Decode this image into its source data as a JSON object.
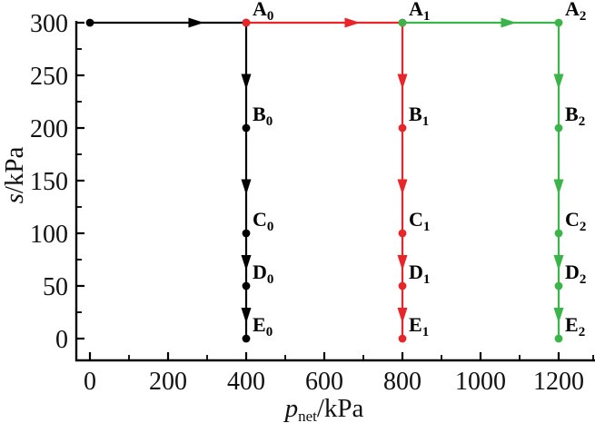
{
  "figure": {
    "description": "Stress path diagram with three loading stages",
    "background": "#ffffff"
  },
  "chart_data": {
    "type": "line",
    "title": "",
    "xlabel": {
      "symbol": "p",
      "subscript": "net",
      "rest": "/kPa"
    },
    "ylabel": {
      "symbol": "s",
      "subscript": "",
      "rest": "/kPa"
    },
    "x_axis": {
      "major_ticks": [
        0,
        200,
        400,
        600,
        800,
        1000,
        1200
      ],
      "minor_ticks": [
        100,
        300,
        500,
        700,
        900,
        1100,
        1300
      ],
      "range": [
        -35,
        1292
      ]
    },
    "y_axis": {
      "major_ticks": [
        0,
        50,
        100,
        150,
        200,
        250,
        300
      ],
      "minor_ticks": [
        25,
        75,
        125,
        175,
        225,
        275
      ],
      "range": [
        -21,
        302
      ]
    },
    "grid": false,
    "legend": "none",
    "colors": {
      "stage0": "#000000",
      "stage1": "#e8262a",
      "stage2": "#3bb54a"
    },
    "series": [
      {
        "name": "loading-stage-0",
        "color": "#000000",
        "points": [
          {
            "x": 0,
            "y": 300
          },
          {
            "x": 400,
            "y": 300,
            "label": "A",
            "sub": "0"
          },
          {
            "x": 400,
            "y": 200,
            "label": "B",
            "sub": "0"
          },
          {
            "x": 400,
            "y": 100,
            "label": "C",
            "sub": "0"
          },
          {
            "x": 400,
            "y": 50,
            "label": "D",
            "sub": "0"
          },
          {
            "x": 400,
            "y": 0,
            "label": "E",
            "sub": "0"
          }
        ]
      },
      {
        "name": "loading-stage-1",
        "color": "#e8262a",
        "points": [
          {
            "x": 400,
            "y": 300
          },
          {
            "x": 800,
            "y": 300,
            "label": "A",
            "sub": "1"
          },
          {
            "x": 800,
            "y": 200,
            "label": "B",
            "sub": "1"
          },
          {
            "x": 800,
            "y": 100,
            "label": "C",
            "sub": "1"
          },
          {
            "x": 800,
            "y": 50,
            "label": "D",
            "sub": "1"
          },
          {
            "x": 800,
            "y": 0,
            "label": "E",
            "sub": "1"
          }
        ]
      },
      {
        "name": "loading-stage-2",
        "color": "#3bb54a",
        "points": [
          {
            "x": 800,
            "y": 300
          },
          {
            "x": 1200,
            "y": 300,
            "label": "A",
            "sub": "2"
          },
          {
            "x": 1200,
            "y": 200,
            "label": "B",
            "sub": "2"
          },
          {
            "x": 1200,
            "y": 100,
            "label": "C",
            "sub": "2"
          },
          {
            "x": 1200,
            "y": 50,
            "label": "D",
            "sub": "2"
          },
          {
            "x": 1200,
            "y": 0,
            "label": "E",
            "sub": "2"
          }
        ]
      }
    ]
  }
}
